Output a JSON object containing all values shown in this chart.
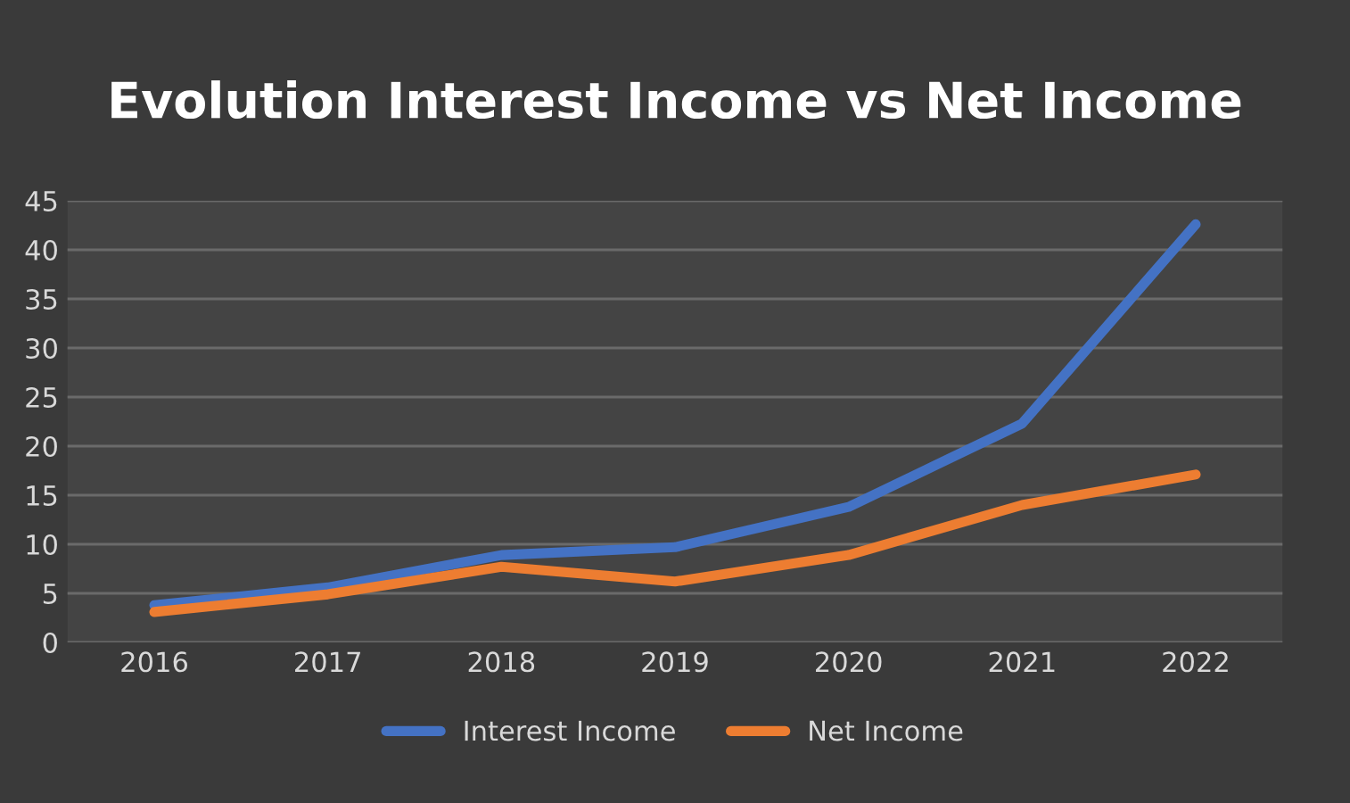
{
  "chart_data": {
    "type": "line",
    "title": "Evolution Interest Income vs Net Income",
    "categories": [
      "2016",
      "2017",
      "2018",
      "2019",
      "2020",
      "2021",
      "2022"
    ],
    "series": [
      {
        "name": "Interest Income",
        "color": "#4472c4",
        "values": [
          3.8,
          5.6,
          8.9,
          9.7,
          13.8,
          22.3,
          42.6
        ]
      },
      {
        "name": "Net Income",
        "color": "#ed7d31",
        "values": [
          3.1,
          4.9,
          7.7,
          6.2,
          8.9,
          14.0,
          17.1
        ]
      }
    ],
    "ylim": [
      0,
      45
    ],
    "yticks": [
      0,
      5,
      10,
      15,
      20,
      25,
      30,
      35,
      40,
      45
    ],
    "grid": "y",
    "legend": "bottom",
    "marker": "none",
    "line_style": "solid"
  }
}
